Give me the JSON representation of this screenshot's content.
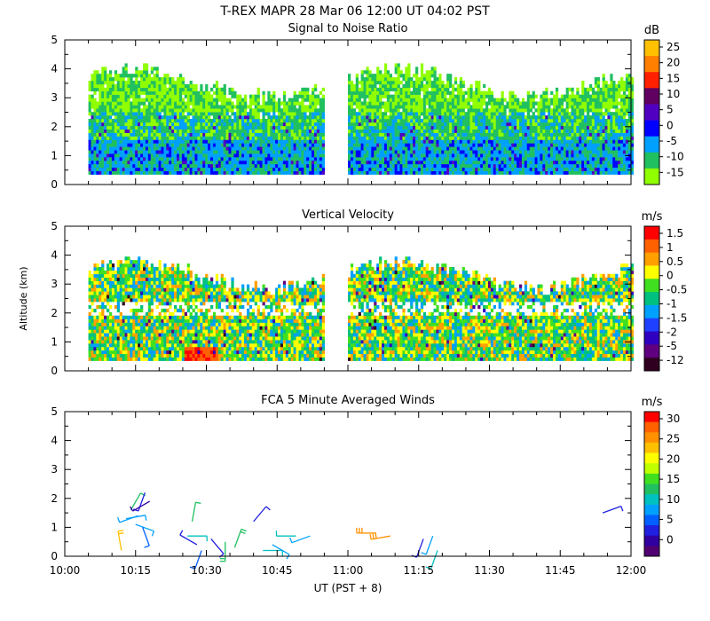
{
  "header": {
    "title": "T-REX   MAPR 28 Mar 06   12:00 UT   04:02   PST"
  },
  "x_axis": {
    "label": "UT  (PST + 8)",
    "tick_labels": [
      "10:00",
      "10:15",
      "10:30",
      "10:45",
      "11:00",
      "11:15",
      "11:30",
      "11:45",
      "12:00"
    ]
  },
  "chart_data": [
    {
      "type": "heatmap",
      "title": "Signal to Noise Ratio",
      "units": "dB",
      "ylabel": "",
      "y_tick_labels": [
        "0",
        "1",
        "2",
        "3",
        "4",
        "5"
      ],
      "ylim": [
        0,
        5
      ],
      "xlim_minutes_after_1000UT": [
        0,
        120
      ],
      "data_segments_minutes": [
        [
          5,
          55
        ],
        [
          60,
          120
        ]
      ],
      "scale_labels": [
        "25",
        "20",
        "15",
        "10",
        "5",
        "0",
        "-5",
        "-10",
        "-15"
      ],
      "scale_colors": [
        "#ffc000",
        "#ff8000",
        "#ff2000",
        "#600060",
        "#5000c0",
        "#0000ff",
        "#00a0ff",
        "#20c060",
        "#90ff00"
      ]
    },
    {
      "type": "heatmap",
      "title": "Vertical Velocity",
      "units": "m/s",
      "ylabel": "Altitude  (km)",
      "y_tick_labels": [
        "0",
        "1",
        "2",
        "3",
        "4",
        "5"
      ],
      "ylim": [
        0,
        5
      ],
      "xlim_minutes_after_1000UT": [
        0,
        120
      ],
      "data_segments_minutes": [
        [
          5,
          55
        ],
        [
          60,
          120
        ]
      ],
      "scale_labels": [
        "1.5",
        "1",
        "0.5",
        "0",
        "-0.5",
        "-1",
        "-1.5",
        "-2",
        "-5",
        "-12"
      ],
      "scale_colors": [
        "#ff0000",
        "#ff6000",
        "#ffa000",
        "#ffff00",
        "#40e020",
        "#00c080",
        "#00a0ff",
        "#2040ff",
        "#3000c0",
        "#600080",
        "#300020"
      ]
    },
    {
      "type": "scatter",
      "title": "FCA 5 Minute Averaged Winds",
      "units": "m/s",
      "ylabel": "",
      "y_tick_labels": [
        "0",
        "1",
        "2",
        "3",
        "4",
        "5"
      ],
      "ylim": [
        0,
        5
      ],
      "xlim_minutes_after_1000UT": [
        0,
        120
      ],
      "scale_labels": [
        "30",
        "25",
        "20",
        "15",
        "10",
        "5",
        "0"
      ],
      "scale_colors": [
        "#ff0000",
        "#ff6000",
        "#ff9000",
        "#ffc000",
        "#ffff00",
        "#c0ff00",
        "#40e020",
        "#20c060",
        "#00c0c0",
        "#00a0ff",
        "#0060ff",
        "#2020e0",
        "#3000a0",
        "#500070"
      ],
      "barbs": [
        {
          "t": 12,
          "alt": 0.2,
          "dir": 350,
          "speed": 24
        },
        {
          "t": 13,
          "alt": 1.3,
          "dir": 80,
          "speed": 10
        },
        {
          "t": 14,
          "alt": 1.6,
          "dir": 30,
          "speed": 14
        },
        {
          "t": 15,
          "alt": 1.1,
          "dir": 110,
          "speed": 11
        },
        {
          "t": 15.5,
          "alt": 1.4,
          "dir": 250,
          "speed": 9
        },
        {
          "t": 16.5,
          "alt": 1.0,
          "dir": 160,
          "speed": 7
        },
        {
          "t": 17,
          "alt": 2.2,
          "dir": 200,
          "speed": 4
        },
        {
          "t": 18,
          "alt": 1.9,
          "dir": 240,
          "speed": 3
        },
        {
          "t": 26,
          "alt": 0.7,
          "dir": 90,
          "speed": 12
        },
        {
          "t": 27,
          "alt": 1.2,
          "dir": 10,
          "speed": 14
        },
        {
          "t": 28,
          "alt": 0.4,
          "dir": 300,
          "speed": 6
        },
        {
          "t": 29,
          "alt": 0.2,
          "dir": 200,
          "speed": 8
        },
        {
          "t": 31,
          "alt": 0.6,
          "dir": 140,
          "speed": 6
        },
        {
          "t": 34,
          "alt": 0.5,
          "dir": 180,
          "speed": 16
        },
        {
          "t": 36,
          "alt": 0.3,
          "dir": 20,
          "speed": 15
        },
        {
          "t": 40,
          "alt": 1.2,
          "dir": 40,
          "speed": 6
        },
        {
          "t": 42,
          "alt": 0.2,
          "dir": 90,
          "speed": 13
        },
        {
          "t": 44,
          "alt": 0.4,
          "dir": 120,
          "speed": 10
        },
        {
          "t": 49,
          "alt": 0.7,
          "dir": 270,
          "speed": 12
        },
        {
          "t": 52,
          "alt": 0.7,
          "dir": 250,
          "speed": 11
        },
        {
          "t": 66,
          "alt": 0.8,
          "dir": 270,
          "speed": 26
        },
        {
          "t": 69,
          "alt": 0.7,
          "dir": 260,
          "speed": 28
        },
        {
          "t": 76,
          "alt": 0.6,
          "dir": 200,
          "speed": 6
        },
        {
          "t": 78,
          "alt": 0.7,
          "dir": 200,
          "speed": 9
        },
        {
          "t": 79,
          "alt": 0.2,
          "dir": 200,
          "speed": 13
        },
        {
          "t": 114,
          "alt": 1.5,
          "dir": 70,
          "speed": 5
        }
      ]
    }
  ]
}
